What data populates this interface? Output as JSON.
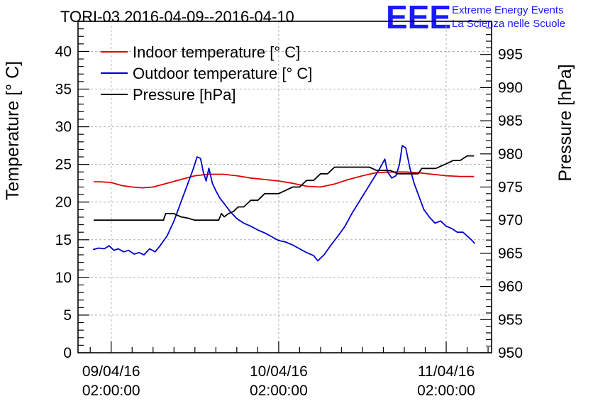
{
  "chart_data": {
    "type": "line",
    "title": "TORI-03 2016-04-09--2016-04-10",
    "ylabel": "Temperature [° C]",
    "y2label": "Pressure [hPa]",
    "ylim": [
      0,
      44
    ],
    "y2lim": [
      950,
      1000
    ],
    "xlim": [
      -4.75,
      54.5
    ],
    "x_unit": "hours from 09/04/16 02:00:00",
    "x_ticks": [
      {
        "value": 0,
        "line1": "09/04/16",
        "line2": "02:00:00"
      },
      {
        "value": 24,
        "line1": "10/04/16",
        "line2": "02:00:00"
      },
      {
        "value": 48,
        "line1": "11/04/16",
        "line2": "02:00:00"
      }
    ],
    "y_ticks": [
      0,
      5,
      10,
      15,
      20,
      25,
      30,
      35,
      40
    ],
    "y2_ticks": [
      950,
      955,
      960,
      965,
      970,
      975,
      980,
      985,
      990,
      995
    ],
    "grid": true,
    "legend_position": "top-left",
    "series": [
      {
        "name": "Indoor temperature [° C]",
        "axis": "left",
        "color": "#e00000",
        "x": [
          -2.5,
          -1.5,
          0,
          1.5,
          3,
          4.5,
          6,
          8,
          10,
          12,
          14,
          16,
          18,
          20,
          22,
          24,
          26,
          28,
          30,
          32,
          34,
          36,
          38,
          40,
          42,
          44,
          46,
          48,
          50,
          52
        ],
        "y": [
          22.7,
          22.7,
          22.6,
          22.2,
          22.0,
          21.9,
          22.0,
          22.5,
          23.0,
          23.5,
          23.7,
          23.7,
          23.5,
          23.2,
          23.0,
          22.8,
          22.5,
          22.1,
          22.0,
          22.4,
          23.0,
          23.5,
          23.9,
          24.0,
          24.0,
          23.9,
          23.7,
          23.5,
          23.4,
          23.4
        ]
      },
      {
        "name": "Outdoor temperature [° C]",
        "axis": "left",
        "color": "#0000d0",
        "x": [
          -2.6,
          -1.8,
          -1,
          -0.3,
          0.4,
          1,
          1.8,
          2.5,
          3.3,
          4,
          4.7,
          5.5,
          6.3,
          7,
          8,
          9,
          10,
          11,
          11.8,
          12.3,
          12.8,
          13.2,
          13.6,
          14.0,
          14.5,
          15,
          15.6,
          16.2,
          17,
          18,
          19,
          20,
          21,
          22,
          23,
          24,
          25,
          26,
          27,
          28,
          29,
          29.6,
          30.5,
          31.5,
          32.5,
          33.5,
          34.5,
          35.5,
          36.5,
          37.5,
          38.5,
          39.2,
          39.6,
          40.2,
          40.8,
          41.3,
          41.7,
          42.2,
          42.8,
          43.4,
          44,
          44.8,
          45.6,
          46.4,
          47.2,
          48,
          48.8,
          49.6,
          50.4,
          51,
          51.6,
          52.1
        ],
        "y": [
          13.7,
          13.9,
          13.8,
          14.2,
          13.6,
          13.8,
          13.4,
          13.6,
          13.1,
          13.3,
          13.0,
          13.8,
          13.4,
          14.2,
          15.5,
          17.5,
          20.0,
          22.5,
          24.5,
          26.0,
          25.8,
          24.0,
          22.8,
          24.5,
          22.5,
          21.5,
          20.5,
          19.8,
          18.8,
          17.8,
          17.2,
          16.8,
          16.3,
          15.9,
          15.4,
          14.9,
          14.7,
          14.3,
          13.8,
          13.3,
          12.9,
          12.2,
          13.0,
          14.3,
          15.5,
          16.8,
          18.5,
          20.0,
          21.5,
          23.0,
          24.5,
          25.7,
          24.0,
          23.2,
          23.5,
          25.0,
          27.5,
          27.2,
          24.5,
          22.5,
          21.0,
          19.0,
          18.0,
          17.2,
          17.5,
          16.8,
          16.5,
          16.0,
          16.0,
          15.5,
          15.0,
          14.5
        ]
      },
      {
        "name": "Pressure [hPa]",
        "axis": "right",
        "color": "#000000",
        "x": [
          -2.5,
          0,
          4,
          7.5,
          7.8,
          9,
          10,
          11,
          12,
          13,
          14,
          15.4,
          15.8,
          16.2,
          16.8,
          17.5,
          18.2,
          19,
          20,
          21,
          22,
          23,
          24,
          25,
          26,
          27,
          28,
          29,
          30,
          31,
          32,
          33,
          34,
          35,
          36,
          37,
          38,
          39,
          40,
          41,
          42,
          43,
          44,
          44.5,
          45.5,
          46.5,
          48,
          49,
          50,
          51,
          52
        ],
        "y": [
          970,
          970,
          970,
          970,
          971,
          971,
          970.5,
          970.3,
          970,
          970,
          970,
          970,
          971,
          970.5,
          971,
          971.3,
          972,
          972,
          973,
          973,
          974,
          974,
          974,
          974.5,
          975,
          975,
          976,
          976,
          977,
          977,
          978,
          978,
          978,
          978,
          978,
          978,
          977.5,
          977.5,
          977.5,
          977,
          977,
          977,
          977,
          977.8,
          977.8,
          977.8,
          978.5,
          979,
          979,
          979.7,
          979.7
        ]
      }
    ]
  },
  "logo": {
    "mark": "EEE",
    "line1": "Extreme Energy Events",
    "line2": "La Scienza nelle Scuole",
    "color": "#1a1aff"
  }
}
